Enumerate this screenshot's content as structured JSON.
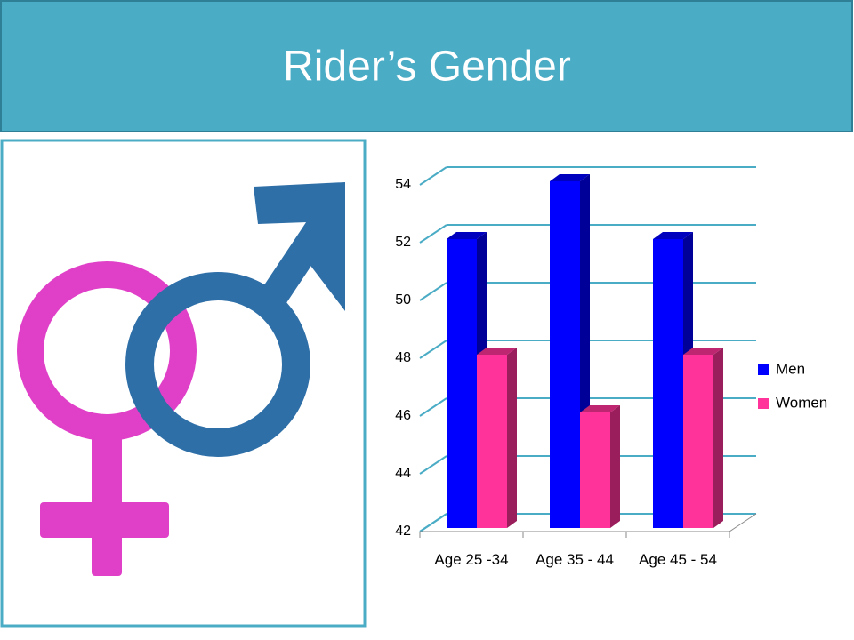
{
  "slide": {
    "title": "Rider’s Gender"
  },
  "chart_data": {
    "type": "bar3d",
    "categories": [
      "Age 25 -34",
      "Age 35 - 44",
      "Age 45 - 54"
    ],
    "series": [
      {
        "name": "Men",
        "color": "#0000ff",
        "values": [
          52,
          54,
          52
        ]
      },
      {
        "name": "Women",
        "color": "#ff3399",
        "values": [
          48,
          46,
          48
        ]
      }
    ],
    "ylim": [
      42,
      54
    ],
    "yticks": [
      42,
      44,
      46,
      48,
      50,
      52,
      54
    ],
    "grid": true,
    "legend": "right"
  }
}
